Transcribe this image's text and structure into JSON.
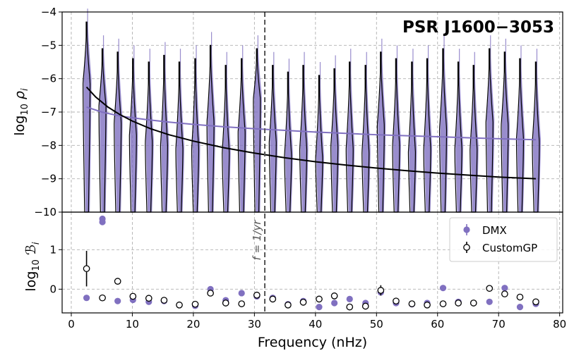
{
  "chart_data": {
    "type": "violin+scatter",
    "title": "PSR J1600−3053",
    "xlabel": "Frequency (nHz)",
    "xlim": [
      -1.5,
      80.5
    ],
    "xticks": [
      "0",
      "10",
      "20",
      "30",
      "40",
      "50",
      "60",
      "70",
      "80"
    ],
    "xtick_values": [
      0,
      10,
      20,
      30,
      40,
      50,
      60,
      70,
      80
    ],
    "colors": {
      "dmx": "#8070c0",
      "custom": "#000000",
      "ref_line": "#555555",
      "grid": "#b0b0b0"
    },
    "reference_line": {
      "x": 31.7,
      "label": "f = 1/yr"
    },
    "top_panel": {
      "ylabel": "log10 ρ_i",
      "ylim": [
        -10,
        -4
      ],
      "yticks": [
        "−4",
        "−5",
        "−6",
        "−7",
        "−8",
        "−9",
        "−10"
      ],
      "ytick_values": [
        -4,
        -5,
        -6,
        -7,
        -8,
        -9,
        -10
      ],
      "violins": [
        {
          "f": 2.5,
          "upper": -4.3,
          "wide": -6.0
        },
        {
          "f": 5.1,
          "upper": -5.1,
          "wide": -6.7
        },
        {
          "f": 7.6,
          "upper": -5.2,
          "wide": -7.2
        },
        {
          "f": 10.1,
          "upper": -5.4,
          "wide": -7.6
        },
        {
          "f": 12.7,
          "upper": -5.5,
          "wide": -7.8
        },
        {
          "f": 15.2,
          "upper": -5.3,
          "wide": -7.9
        },
        {
          "f": 17.7,
          "upper": -5.5,
          "wide": -8.0
        },
        {
          "f": 20.3,
          "upper": -5.4,
          "wide": -8.0
        },
        {
          "f": 22.8,
          "upper": -5.0,
          "wide": -7.2
        },
        {
          "f": 25.3,
          "upper": -5.6,
          "wide": -8.1
        },
        {
          "f": 27.9,
          "upper": -5.4,
          "wide": -7.5
        },
        {
          "f": 30.4,
          "upper": -5.1,
          "wide": -6.5
        },
        {
          "f": 33.0,
          "upper": -5.6,
          "wide": -7.8
        },
        {
          "f": 35.5,
          "upper": -5.8,
          "wide": -8.2
        },
        {
          "f": 38.0,
          "upper": -5.6,
          "wide": -8.0
        },
        {
          "f": 40.6,
          "upper": -5.9,
          "wide": -8.3
        },
        {
          "f": 43.1,
          "upper": -5.7,
          "wide": -7.9
        },
        {
          "f": 45.6,
          "upper": -5.5,
          "wide": -8.0
        },
        {
          "f": 48.2,
          "upper": -5.6,
          "wide": -8.1
        },
        {
          "f": 50.7,
          "upper": -5.2,
          "wide": -7.3
        },
        {
          "f": 53.2,
          "upper": -5.4,
          "wide": -7.9
        },
        {
          "f": 55.8,
          "upper": -5.5,
          "wide": -8.1
        },
        {
          "f": 58.3,
          "upper": -5.4,
          "wide": -8.0
        },
        {
          "f": 60.9,
          "upper": -5.1,
          "wide": -7.4
        },
        {
          "f": 63.4,
          "upper": -5.5,
          "wide": -8.0
        },
        {
          "f": 65.9,
          "upper": -5.6,
          "wide": -8.0
        },
        {
          "f": 68.5,
          "upper": -5.1,
          "wide": -7.2
        },
        {
          "f": 71.0,
          "upper": -5.2,
          "wide": -7.3
        },
        {
          "f": 73.5,
          "upper": -5.4,
          "wide": -7.7
        },
        {
          "f": 76.1,
          "upper": -5.5,
          "wide": -7.8
        }
      ],
      "fit_dmx": {
        "x": [
          2.5,
          5,
          8,
          12,
          16,
          20,
          25,
          30,
          35,
          40,
          45,
          50,
          55,
          60,
          65,
          70,
          76.1
        ],
        "y": [
          -6.85,
          -7.0,
          -7.12,
          -7.22,
          -7.3,
          -7.37,
          -7.44,
          -7.5,
          -7.55,
          -7.6,
          -7.64,
          -7.68,
          -7.71,
          -7.74,
          -7.77,
          -7.8,
          -7.83
        ]
      },
      "fit_custom": {
        "x": [
          2.5,
          4,
          6,
          8,
          10,
          13,
          16,
          20,
          25,
          30,
          35,
          40,
          45,
          50,
          55,
          60,
          65,
          70,
          76.1
        ],
        "y": [
          -6.25,
          -6.55,
          -6.85,
          -7.08,
          -7.27,
          -7.5,
          -7.68,
          -7.87,
          -8.07,
          -8.23,
          -8.37,
          -8.49,
          -8.59,
          -8.68,
          -8.76,
          -8.83,
          -8.89,
          -8.95,
          -9.0
        ]
      }
    },
    "bottom_panel": {
      "ylabel": "log10 B_i",
      "ylim": [
        -0.6,
        1.95
      ],
      "yticks": [
        "0",
        "1"
      ],
      "ytick_values": [
        0,
        1
      ],
      "legend": {
        "position": "top-right",
        "entries": [
          "DMX",
          "CustomGP"
        ]
      },
      "dmx": [
        {
          "f": 2.5,
          "y": -0.22
        },
        {
          "f": 5.1,
          "y": 1.7
        },
        {
          "f": 7.6,
          "y": -0.3
        },
        {
          "f": 10.1,
          "y": -0.27
        },
        {
          "f": 12.7,
          "y": -0.32
        },
        {
          "f": 15.2,
          "y": -0.3
        },
        {
          "f": 17.7,
          "y": -0.4
        },
        {
          "f": 20.3,
          "y": -0.42
        },
        {
          "f": 22.8,
          "y": 0.0
        },
        {
          "f": 25.3,
          "y": -0.28
        },
        {
          "f": 27.9,
          "y": -0.1
        },
        {
          "f": 30.4,
          "y": -0.18
        },
        {
          "f": 33.0,
          "y": -0.22
        },
        {
          "f": 35.5,
          "y": -0.38
        },
        {
          "f": 38.0,
          "y": -0.3
        },
        {
          "f": 40.6,
          "y": -0.45
        },
        {
          "f": 43.1,
          "y": -0.35
        },
        {
          "f": 45.6,
          "y": -0.25
        },
        {
          "f": 48.2,
          "y": -0.35
        },
        {
          "f": 50.7,
          "y": -0.08
        },
        {
          "f": 53.2,
          "y": -0.35
        },
        {
          "f": 55.8,
          "y": -0.38
        },
        {
          "f": 58.3,
          "y": -0.35
        },
        {
          "f": 60.9,
          "y": 0.03
        },
        {
          "f": 63.4,
          "y": -0.32
        },
        {
          "f": 65.9,
          "y": -0.35
        },
        {
          "f": 68.5,
          "y": -0.32
        },
        {
          "f": 71.0,
          "y": 0.03
        },
        {
          "f": 73.5,
          "y": -0.45
        },
        {
          "f": 76.1,
          "y": -0.37
        }
      ],
      "custom": [
        {
          "f": 2.5,
          "y": 0.52,
          "err": 0.45
        },
        {
          "f": 5.1,
          "y": -0.22
        },
        {
          "f": 7.6,
          "y": 0.2
        },
        {
          "f": 10.1,
          "y": -0.18
        },
        {
          "f": 12.7,
          "y": -0.23
        },
        {
          "f": 15.2,
          "y": -0.28
        },
        {
          "f": 17.7,
          "y": -0.4
        },
        {
          "f": 20.3,
          "y": -0.38
        },
        {
          "f": 22.8,
          "y": -0.1
        },
        {
          "f": 25.3,
          "y": -0.35
        },
        {
          "f": 27.9,
          "y": -0.37
        },
        {
          "f": 30.4,
          "y": -0.15
        },
        {
          "f": 33.0,
          "y": -0.25
        },
        {
          "f": 35.5,
          "y": -0.4
        },
        {
          "f": 38.0,
          "y": -0.33
        },
        {
          "f": 40.6,
          "y": -0.25
        },
        {
          "f": 43.1,
          "y": -0.17
        },
        {
          "f": 45.6,
          "y": -0.45
        },
        {
          "f": 48.2,
          "y": -0.43
        },
        {
          "f": 50.7,
          "y": -0.03,
          "err": 0.13
        },
        {
          "f": 53.2,
          "y": -0.3
        },
        {
          "f": 55.8,
          "y": -0.37
        },
        {
          "f": 58.3,
          "y": -0.4
        },
        {
          "f": 60.9,
          "y": -0.37
        },
        {
          "f": 63.4,
          "y": -0.35
        },
        {
          "f": 65.9,
          "y": -0.35
        },
        {
          "f": 68.5,
          "y": 0.02
        },
        {
          "f": 71.0,
          "y": -0.12
        },
        {
          "f": 73.5,
          "y": -0.2
        },
        {
          "f": 76.1,
          "y": -0.32
        }
      ]
    }
  }
}
